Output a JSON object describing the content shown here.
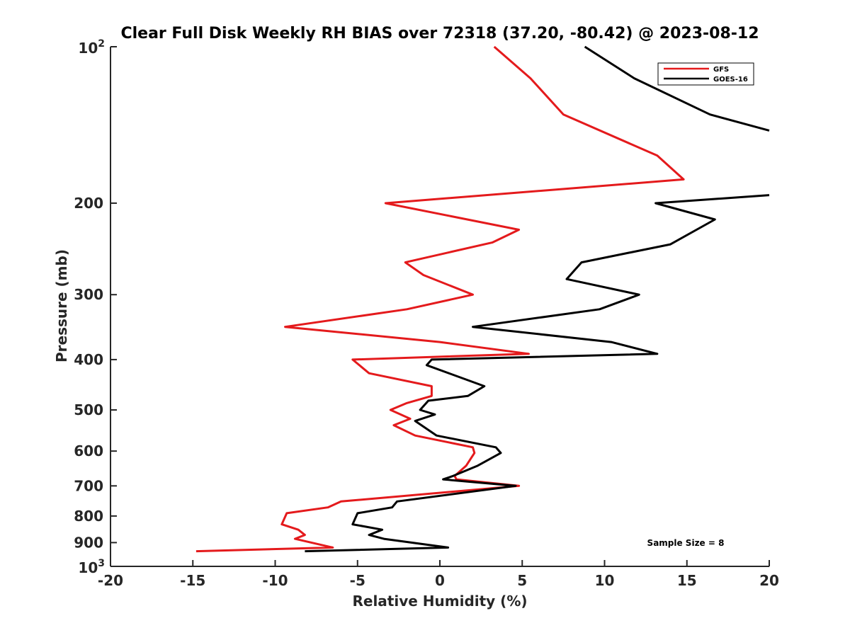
{
  "chart_data": {
    "type": "line",
    "title": "Clear Full Disk Weekly RH BIAS over 72318 (37.20, -80.42) @ 2023-08-12",
    "xlabel": "Relative Humidity (%)",
    "ylabel": "Pressure (mb)",
    "xlim": [
      -20,
      20
    ],
    "ylim": [
      100,
      1000
    ],
    "y_scale": "log",
    "y_reversed": true,
    "grid": false,
    "legend_position": "top-right",
    "x_ticks": [
      "-20",
      "-15",
      "-10",
      "-5",
      "0",
      "5",
      "10",
      "15",
      "20"
    ],
    "y_ticks": [
      {
        "base": "10",
        "exp": "2"
      },
      {
        "label": "200"
      },
      {
        "label": "300"
      },
      {
        "label": "400"
      },
      {
        "label": "500"
      },
      {
        "label": "600"
      },
      {
        "label": "700"
      },
      {
        "label": "800"
      },
      {
        "label": "900"
      },
      {
        "base": "10",
        "exp": "3"
      }
    ],
    "annotation": "Sample Size = 8",
    "series": [
      {
        "name": "GFS",
        "color": "#e41a1c",
        "points": [
          [
            3.3,
            100
          ],
          [
            5.5,
            115
          ],
          [
            7.5,
            135
          ],
          [
            13.2,
            162
          ],
          [
            14.8,
            180
          ],
          [
            -3.3,
            200
          ],
          [
            4.8,
            225
          ],
          [
            3.2,
            238
          ],
          [
            -2.1,
            260
          ],
          [
            -1.0,
            275
          ],
          [
            2.0,
            300
          ],
          [
            -2.0,
            320
          ],
          [
            -9.4,
            346
          ],
          [
            0.0,
            370
          ],
          [
            5.4,
            390
          ],
          [
            -5.3,
            400
          ],
          [
            -4.3,
            425
          ],
          [
            -0.5,
            450
          ],
          [
            -0.5,
            470
          ],
          [
            -2.0,
            485
          ],
          [
            -3.0,
            500
          ],
          [
            -1.8,
            520
          ],
          [
            -2.8,
            535
          ],
          [
            -1.5,
            560
          ],
          [
            2.0,
            590
          ],
          [
            2.1,
            605
          ],
          [
            1.6,
            640
          ],
          [
            0.9,
            670
          ],
          [
            1.0,
            680
          ],
          [
            4.8,
            700
          ],
          [
            -6.0,
            750
          ],
          [
            -6.8,
            770
          ],
          [
            -9.3,
            790
          ],
          [
            -9.6,
            830
          ],
          [
            -8.6,
            850
          ],
          [
            -8.2,
            870
          ],
          [
            -8.8,
            885
          ],
          [
            -6.5,
            920
          ],
          [
            -14.8,
            935
          ]
        ]
      },
      {
        "name": "GOES-16",
        "color": "#000000",
        "points": [
          [
            8.8,
            100
          ],
          [
            11.8,
            115
          ],
          [
            16.4,
            135
          ],
          [
            20.0,
            145
          ],
          null,
          [
            20.0,
            193
          ],
          [
            13.1,
            200
          ],
          [
            16.7,
            215
          ],
          [
            14.0,
            240
          ],
          [
            8.6,
            260
          ],
          [
            7.7,
            280
          ],
          [
            12.1,
            300
          ],
          [
            9.7,
            320
          ],
          [
            2.0,
            346
          ],
          [
            10.4,
            370
          ],
          [
            13.2,
            390
          ],
          [
            -0.5,
            400
          ],
          [
            -0.8,
            410
          ],
          [
            2.7,
            450
          ],
          [
            1.7,
            470
          ],
          [
            -0.7,
            480
          ],
          [
            -1.2,
            500
          ],
          [
            -0.3,
            510
          ],
          [
            -1.5,
            525
          ],
          [
            -0.2,
            560
          ],
          [
            3.4,
            590
          ],
          [
            3.7,
            605
          ],
          [
            2.3,
            640
          ],
          [
            0.8,
            670
          ],
          [
            0.2,
            680
          ],
          [
            4.6,
            700
          ],
          [
            -2.6,
            750
          ],
          [
            -2.9,
            770
          ],
          [
            -5.0,
            790
          ],
          [
            -5.3,
            830
          ],
          [
            -3.5,
            850
          ],
          [
            -4.3,
            870
          ],
          [
            -3.4,
            885
          ],
          [
            0.5,
            920
          ],
          [
            -8.2,
            935
          ]
        ]
      }
    ]
  }
}
